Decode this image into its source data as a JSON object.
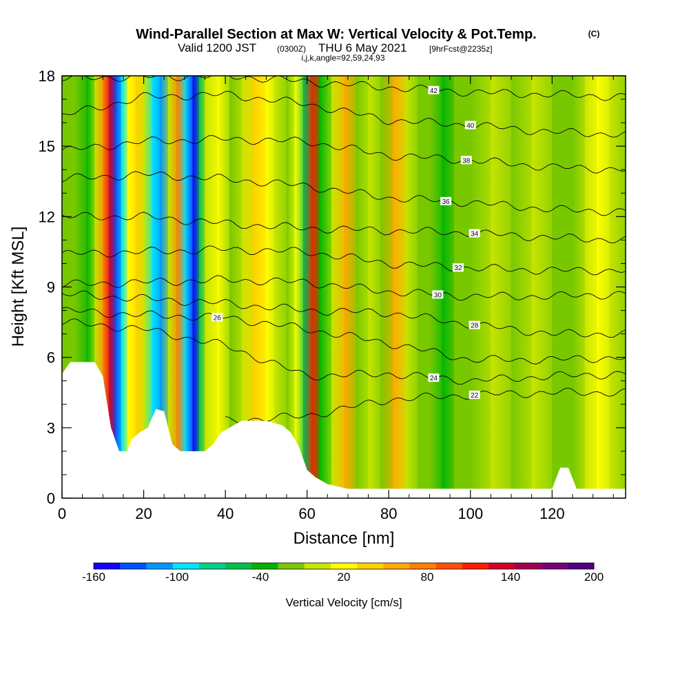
{
  "title": {
    "line1": "Wind-Parallel Section at Max W: Vertical Velocity & Pot.Temp.",
    "copyright": "(C)",
    "line2_a": "Valid 1200 JST",
    "line2_b": "(0300Z)",
    "line2_c": "THU 6 May 2021",
    "line2_d": "[9hrFcst@2235z]",
    "line3": "i,j,k,angle=92,59,24,93"
  },
  "chart_data": {
    "type": "heatmap",
    "xlabel": "Distance [nm]",
    "ylabel": "Height [Kft MSL]",
    "xlim": [
      0,
      138
    ],
    "ylim": [
      0,
      18
    ],
    "x_ticks": [
      "0",
      "20",
      "40",
      "60",
      "80",
      "100",
      "120"
    ],
    "y_ticks": [
      "0",
      "3",
      "6",
      "9",
      "12",
      "15",
      "18"
    ],
    "colorbar": {
      "label": "Vertical Velocity [cm/s]",
      "tick_labels": [
        "-160",
        "-100",
        "-40",
        "20",
        "80",
        "140",
        "200"
      ],
      "colors": [
        "#1400ff",
        "#0050ff",
        "#0096ff",
        "#00e6ff",
        "#00d28c",
        "#00c050",
        "#00b400",
        "#78c800",
        "#c8e600",
        "#ffff00",
        "#ffd200",
        "#ffaa00",
        "#ff8000",
        "#ff5000",
        "#ff1e00",
        "#d20028",
        "#a00050",
        "#780078",
        "#500082"
      ]
    },
    "velocity_columns": [
      {
        "x": 0,
        "w": -10
      },
      {
        "x": 3,
        "w": -10
      },
      {
        "x": 6,
        "w": -30
      },
      {
        "x": 8,
        "w": 10
      },
      {
        "x": 10,
        "w": 80
      },
      {
        "x": 11.5,
        "w": 150
      },
      {
        "x": 13,
        "w": -140
      },
      {
        "x": 14.5,
        "w": -100
      },
      {
        "x": 16,
        "w": 30
      },
      {
        "x": 18,
        "w": 40
      },
      {
        "x": 20,
        "w": 10
      },
      {
        "x": 22,
        "w": -100
      },
      {
        "x": 24,
        "w": -110
      },
      {
        "x": 26,
        "w": 10
      },
      {
        "x": 28,
        "w": 90
      },
      {
        "x": 30,
        "w": -90
      },
      {
        "x": 32,
        "w": -170
      },
      {
        "x": 33.5,
        "w": -60
      },
      {
        "x": 35,
        "w": 10
      },
      {
        "x": 38,
        "w": 20
      },
      {
        "x": 41,
        "w": -20
      },
      {
        "x": 44,
        "w": 10
      },
      {
        "x": 47,
        "w": 40
      },
      {
        "x": 50,
        "w": 30
      },
      {
        "x": 52,
        "w": 10
      },
      {
        "x": 55,
        "w": -20
      },
      {
        "x": 57,
        "w": 20
      },
      {
        "x": 59,
        "w": -60
      },
      {
        "x": 61,
        "w": 120
      },
      {
        "x": 63,
        "w": -30
      },
      {
        "x": 66,
        "w": 10
      },
      {
        "x": 69,
        "w": 60
      },
      {
        "x": 72,
        "w": -20
      },
      {
        "x": 75,
        "w": 0
      },
      {
        "x": 78,
        "w": -20
      },
      {
        "x": 81,
        "w": 60
      },
      {
        "x": 84,
        "w": 10
      },
      {
        "x": 87,
        "w": -20
      },
      {
        "x": 90,
        "w": -10
      },
      {
        "x": 93,
        "w": -40
      },
      {
        "x": 96,
        "w": -10
      },
      {
        "x": 100,
        "w": -10
      },
      {
        "x": 105,
        "w": 0
      },
      {
        "x": 110,
        "w": -10
      },
      {
        "x": 115,
        "w": 10
      },
      {
        "x": 120,
        "w": -10
      },
      {
        "x": 125,
        "w": -20
      },
      {
        "x": 128,
        "w": 10
      },
      {
        "x": 131,
        "w": 20
      },
      {
        "x": 134,
        "w": 10
      },
      {
        "x": 138,
        "w": -10
      }
    ],
    "theta_contours": [
      {
        "value": 22,
        "label": "22",
        "heights": [
          [
            40,
            3.3
          ],
          [
            60,
            3.5
          ],
          [
            80,
            4.2
          ],
          [
            100,
            4.4
          ],
          [
            120,
            4.5
          ],
          [
            138,
            4.5
          ]
        ],
        "label_x": 101
      },
      {
        "value": 24,
        "label": "24",
        "heights": [
          [
            0,
            7.5
          ],
          [
            20,
            7.2
          ],
          [
            40,
            6.5
          ],
          [
            60,
            5.2
          ],
          [
            80,
            5.3
          ],
          [
            100,
            5.0
          ],
          [
            120,
            5.2
          ],
          [
            138,
            5.3
          ]
        ],
        "label_x": 91
      },
      {
        "value": 26,
        "label": "26",
        "heights": [
          [
            0,
            8.0
          ],
          [
            20,
            7.8
          ],
          [
            40,
            7.7
          ],
          [
            60,
            7.2
          ],
          [
            80,
            6.6
          ],
          [
            100,
            5.9
          ],
          [
            120,
            5.9
          ],
          [
            138,
            6.0
          ]
        ],
        "label_x": 38
      },
      {
        "value": 28,
        "label": "28",
        "heights": [
          [
            0,
            8.7
          ],
          [
            20,
            8.5
          ],
          [
            40,
            8.3
          ],
          [
            60,
            8.0
          ],
          [
            80,
            7.9
          ],
          [
            100,
            7.4
          ],
          [
            120,
            7.0
          ],
          [
            138,
            7.0
          ]
        ],
        "label_x": 101
      },
      {
        "value": 30,
        "label": "30",
        "heights": [
          [
            0,
            9.1
          ],
          [
            20,
            9.2
          ],
          [
            40,
            9.3
          ],
          [
            60,
            9.2
          ],
          [
            80,
            8.8
          ],
          [
            100,
            8.6
          ],
          [
            120,
            8.6
          ],
          [
            138,
            8.7
          ]
        ],
        "label_x": 92
      },
      {
        "value": 32,
        "label": "32",
        "heights": [
          [
            0,
            10.4
          ],
          [
            20,
            10.5
          ],
          [
            40,
            10.6
          ],
          [
            60,
            10.5
          ],
          [
            80,
            10.0
          ],
          [
            100,
            9.8
          ],
          [
            120,
            9.7
          ],
          [
            138,
            9.7
          ]
        ],
        "label_x": 97
      },
      {
        "value": 34,
        "label": "34",
        "heights": [
          [
            0,
            12.0
          ],
          [
            20,
            12.0
          ],
          [
            40,
            11.7
          ],
          [
            60,
            11.5
          ],
          [
            80,
            11.4
          ],
          [
            100,
            11.3
          ],
          [
            120,
            11.1
          ],
          [
            138,
            11.0
          ]
        ],
        "label_x": 101
      },
      {
        "value": 36,
        "label": "36",
        "heights": [
          [
            0,
            13.6
          ],
          [
            20,
            13.8
          ],
          [
            40,
            13.6
          ],
          [
            60,
            13.3
          ],
          [
            80,
            12.8
          ],
          [
            100,
            12.6
          ],
          [
            120,
            12.3
          ],
          [
            138,
            12.2
          ]
        ],
        "label_x": 94
      },
      {
        "value": 38,
        "label": "38",
        "heights": [
          [
            0,
            14.8
          ],
          [
            20,
            15.2
          ],
          [
            40,
            15.3
          ],
          [
            60,
            15.2
          ],
          [
            80,
            14.6
          ],
          [
            100,
            14.4
          ],
          [
            120,
            14.1
          ],
          [
            138,
            14.0
          ]
        ],
        "label_x": 99
      },
      {
        "value": 40,
        "label": "40",
        "heights": [
          [
            0,
            16.3
          ],
          [
            20,
            17.1
          ],
          [
            40,
            17.2
          ],
          [
            60,
            16.8
          ],
          [
            80,
            16.1
          ],
          [
            100,
            15.9
          ],
          [
            120,
            15.6
          ],
          [
            138,
            15.5
          ]
        ],
        "label_x": 100
      },
      {
        "value": 42,
        "label": "42",
        "heights": [
          [
            0,
            17.9
          ],
          [
            40,
            18.0
          ],
          [
            80,
            17.5
          ],
          [
            100,
            17.3
          ],
          [
            138,
            17.1
          ]
        ],
        "label_x": 91
      }
    ],
    "terrain_heights": [
      [
        0,
        5.3
      ],
      [
        2,
        5.8
      ],
      [
        8,
        5.8
      ],
      [
        10,
        5.2
      ],
      [
        12,
        3.0
      ],
      [
        13,
        2.5
      ],
      [
        14,
        2.0
      ],
      [
        16,
        2.0
      ],
      [
        17,
        2.5
      ],
      [
        19,
        2.8
      ],
      [
        21,
        3.0
      ],
      [
        23,
        3.8
      ],
      [
        25,
        3.7
      ],
      [
        27,
        2.3
      ],
      [
        29,
        2.0
      ],
      [
        35,
        2.0
      ],
      [
        37,
        2.3
      ],
      [
        39,
        2.8
      ],
      [
        42,
        3.1
      ],
      [
        44,
        3.3
      ],
      [
        50,
        3.3
      ],
      [
        54,
        3.1
      ],
      [
        56,
        2.8
      ],
      [
        58,
        2.2
      ],
      [
        60,
        1.2
      ],
      [
        62,
        0.9
      ],
      [
        65,
        0.6
      ],
      [
        70,
        0.4
      ],
      [
        120,
        0.4
      ],
      [
        122,
        1.3
      ],
      [
        124,
        1.3
      ],
      [
        126,
        0.4
      ],
      [
        138,
        0.4
      ]
    ]
  }
}
